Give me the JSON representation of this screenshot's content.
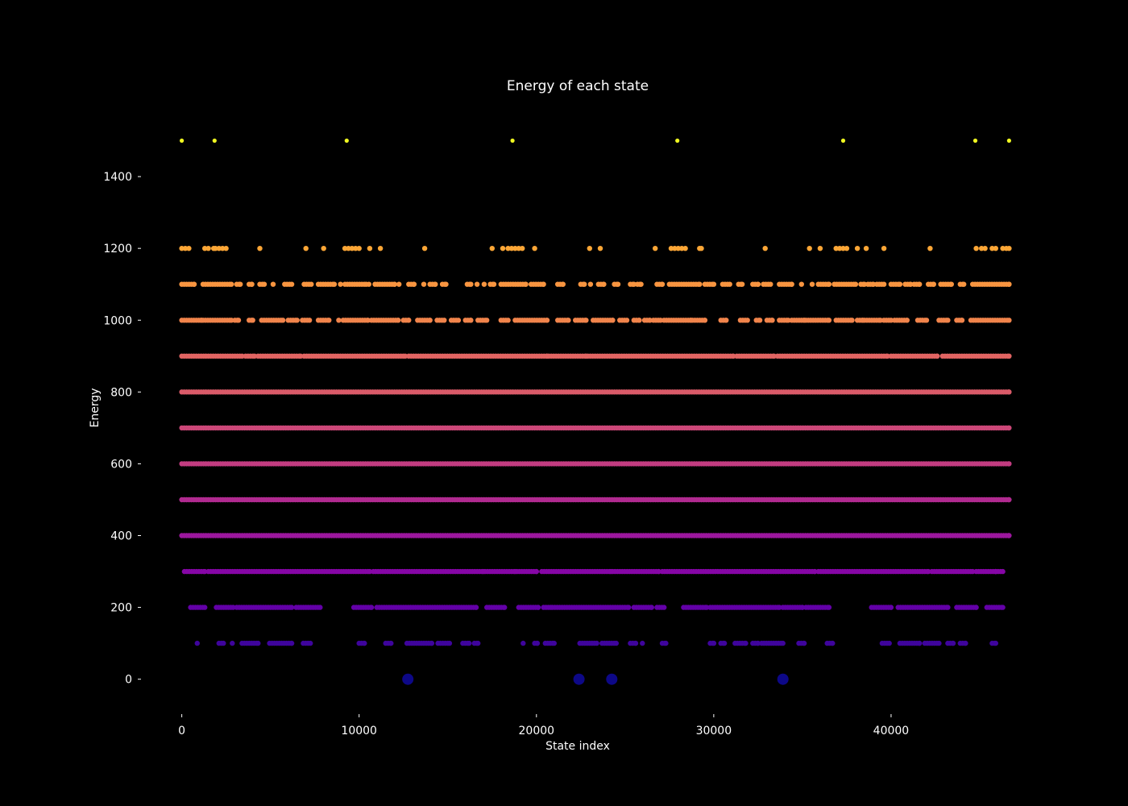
{
  "chart_data": {
    "type": "scatter",
    "title": "Energy of each state",
    "xlabel": "State index",
    "ylabel": "Energy",
    "xlim": [
      -2300,
      47000
    ],
    "ylim": [
      -95,
      1600
    ],
    "x_ticks": [
      0,
      10000,
      20000,
      30000,
      40000
    ],
    "x_tick_labels": [
      "0",
      "10000",
      "20000",
      "30000",
      "40000"
    ],
    "y_ticks": [
      0,
      200,
      400,
      600,
      800,
      1000,
      1200,
      1400
    ],
    "y_tick_labels": [
      "0",
      "200",
      "400",
      "600",
      "800",
      "1000",
      "1200",
      "1400"
    ],
    "total_states": 46656,
    "grid": false,
    "colormap": "plasma",
    "levels": [
      {
        "energy": 0,
        "color": "#0d0887",
        "marker": "large",
        "x": [
          12750,
          22400,
          24250,
          33900
        ]
      },
      {
        "energy": 100,
        "color": "#3e049c",
        "marker": "medium",
        "ranges": [
          [
            870,
            870
          ],
          [
            2100,
            2350
          ],
          [
            2800,
            2900
          ],
          [
            3400,
            4300
          ],
          [
            4950,
            6200
          ],
          [
            6850,
            7250
          ],
          [
            10000,
            10300
          ],
          [
            11500,
            11800
          ],
          [
            12700,
            14100
          ],
          [
            14450,
            15100
          ],
          [
            15850,
            16200
          ],
          [
            16500,
            16700
          ],
          [
            19200,
            19300
          ],
          [
            19900,
            20050
          ],
          [
            20500,
            21000
          ],
          [
            22450,
            23400
          ],
          [
            23700,
            24500
          ],
          [
            25300,
            25600
          ],
          [
            25950,
            26000
          ],
          [
            27100,
            27300
          ],
          [
            29800,
            30000
          ],
          [
            30400,
            30600
          ],
          [
            31200,
            31800
          ],
          [
            32200,
            32500
          ],
          [
            32700,
            33900
          ],
          [
            34800,
            35100
          ],
          [
            36400,
            36700
          ],
          [
            39500,
            39900
          ],
          [
            40500,
            41600
          ],
          [
            41900,
            42700
          ],
          [
            43200,
            43500
          ],
          [
            43900,
            44200
          ],
          [
            45700,
            45900
          ]
        ]
      },
      {
        "energy": 200,
        "color": "#6300a7",
        "marker": "medium",
        "ranges": [
          [
            500,
            1300
          ],
          [
            1950,
            2900
          ],
          [
            3100,
            6200
          ],
          [
            6450,
            7800
          ],
          [
            9700,
            10700
          ],
          [
            11000,
            16600
          ],
          [
            17200,
            18200
          ],
          [
            19000,
            20100
          ],
          [
            20400,
            20800
          ],
          [
            20900,
            25200
          ],
          [
            25500,
            26500
          ],
          [
            26800,
            27200
          ],
          [
            28300,
            29600
          ],
          [
            29800,
            33700
          ],
          [
            33900,
            35000
          ],
          [
            35200,
            36500
          ],
          [
            38900,
            40000
          ],
          [
            40400,
            43200
          ],
          [
            43700,
            44800
          ],
          [
            45400,
            46300
          ]
        ]
      },
      {
        "energy": 300,
        "color": "#8606a6",
        "marker": "medium",
        "ranges": [
          [
            150,
            1300
          ],
          [
            1500,
            10600
          ],
          [
            10800,
            17000
          ],
          [
            17100,
            18800
          ],
          [
            18900,
            20000
          ],
          [
            20300,
            24200
          ],
          [
            24300,
            26900
          ],
          [
            27100,
            35700
          ],
          [
            35900,
            42100
          ],
          [
            42300,
            44600
          ],
          [
            44800,
            45900
          ],
          [
            45900,
            46300
          ]
        ]
      },
      {
        "energy": 400,
        "color": "#9c179e",
        "marker": "medium",
        "ranges": [
          [
            0,
            46656
          ]
        ]
      },
      {
        "energy": 500,
        "color": "#b12a90",
        "marker": "medium",
        "ranges": [
          [
            0,
            46656
          ]
        ]
      },
      {
        "energy": 600,
        "color": "#c23c81",
        "marker": "medium",
        "ranges": [
          [
            0,
            46656
          ]
        ]
      },
      {
        "energy": 700,
        "color": "#cc4778",
        "marker": "medium",
        "ranges": [
          [
            0,
            46656
          ]
        ]
      },
      {
        "energy": 800,
        "color": "#da5b69",
        "marker": "medium",
        "ranges": [
          [
            0,
            46656
          ]
        ]
      },
      {
        "energy": 900,
        "color": "#e16462",
        "marker": "medium",
        "ranges": [
          [
            0,
            3400
          ],
          [
            3600,
            4100
          ],
          [
            4300,
            6700
          ],
          [
            6900,
            12600
          ],
          [
            12800,
            20600
          ],
          [
            20700,
            22800
          ],
          [
            22900,
            31100
          ],
          [
            31300,
            33400
          ],
          [
            33600,
            39800
          ],
          [
            40000,
            42600
          ],
          [
            42900,
            46656
          ]
        ]
      },
      {
        "energy": 1000,
        "color": "#f1844b",
        "marker": "medium",
        "ranges": [
          [
            0,
            1100
          ],
          [
            1200,
            2800
          ],
          [
            3000,
            3200
          ],
          [
            3800,
            4000
          ],
          [
            4500,
            5700
          ],
          [
            6000,
            6500
          ],
          [
            6800,
            7200
          ],
          [
            7700,
            8300
          ],
          [
            8800,
            8900
          ],
          [
            9100,
            10500
          ],
          [
            10700,
            12200
          ],
          [
            12500,
            12800
          ],
          [
            13300,
            14000
          ],
          [
            14400,
            14800
          ],
          [
            15200,
            15600
          ],
          [
            16000,
            16300
          ],
          [
            16700,
            17200
          ],
          [
            18000,
            18400
          ],
          [
            18800,
            20600
          ],
          [
            21200,
            21800
          ],
          [
            22200,
            22800
          ],
          [
            23200,
            24300
          ],
          [
            24700,
            25100
          ],
          [
            25500,
            25800
          ],
          [
            26100,
            26400
          ],
          [
            26600,
            27000
          ],
          [
            27200,
            28700
          ],
          [
            28800,
            29500
          ],
          [
            30400,
            30700
          ],
          [
            31500,
            31900
          ],
          [
            32400,
            32600
          ],
          [
            33000,
            33300
          ],
          [
            33700,
            34200
          ],
          [
            34400,
            35100
          ],
          [
            35200,
            36500
          ],
          [
            36900,
            37800
          ],
          [
            38100,
            38400
          ],
          [
            38500,
            39400
          ],
          [
            39600,
            40000
          ],
          [
            40200,
            40900
          ],
          [
            41500,
            42000
          ],
          [
            42700,
            43200
          ],
          [
            43700,
            44000
          ],
          [
            44500,
            46656
          ]
        ]
      },
      {
        "energy": 1100,
        "color": "#f89540",
        "marker": "medium",
        "ranges": [
          [
            0,
            700
          ],
          [
            1200,
            2800
          ],
          [
            3100,
            3300
          ],
          [
            3800,
            3950
          ],
          [
            4400,
            4650
          ],
          [
            5100,
            5200
          ],
          [
            5800,
            6200
          ],
          [
            6900,
            7300
          ],
          [
            7700,
            8600
          ],
          [
            8900,
            9000
          ],
          [
            9200,
            10400
          ],
          [
            10500,
            10600
          ],
          [
            10900,
            12000
          ],
          [
            12200,
            12300
          ],
          [
            12800,
            13100
          ],
          [
            13600,
            13700
          ],
          [
            14000,
            14300
          ],
          [
            14700,
            14900
          ],
          [
            16100,
            16300
          ],
          [
            16600,
            16700
          ],
          [
            17000,
            17100
          ],
          [
            17400,
            17600
          ],
          [
            18000,
            19400
          ],
          [
            19700,
            20400
          ],
          [
            21200,
            21500
          ],
          [
            22500,
            22700
          ],
          [
            23000,
            23100
          ],
          [
            23500,
            23800
          ],
          [
            24400,
            24600
          ],
          [
            25300,
            25500
          ],
          [
            25700,
            25900
          ],
          [
            26800,
            27100
          ],
          [
            27500,
            29200
          ],
          [
            29500,
            30000
          ],
          [
            30500,
            30900
          ],
          [
            31400,
            31600
          ],
          [
            32200,
            32500
          ],
          [
            32800,
            33200
          ],
          [
            33700,
            34400
          ],
          [
            34900,
            35000
          ],
          [
            35500,
            35600
          ],
          [
            35900,
            36500
          ],
          [
            36800,
            38000
          ],
          [
            38300,
            38500
          ],
          [
            38700,
            39000
          ],
          [
            39200,
            39600
          ],
          [
            40000,
            40500
          ],
          [
            40800,
            41100
          ],
          [
            41300,
            41600
          ],
          [
            42100,
            42400
          ],
          [
            42800,
            43400
          ],
          [
            43900,
            44100
          ],
          [
            44600,
            46656
          ]
        ]
      },
      {
        "energy": 1200,
        "color": "#fca636",
        "marker": "medium",
        "x": [
          0,
          200,
          400,
          1300,
          1500,
          1800,
          1900,
          2100,
          2300,
          2500,
          4400,
          7000,
          8000,
          9200,
          9400,
          9600,
          9800,
          10000,
          10600,
          11200,
          13700,
          17500,
          18100,
          18400,
          18600,
          18800,
          19000,
          19200,
          19900,
          23000,
          23600,
          26700,
          27600,
          27800,
          28000,
          28200,
          28400,
          29200,
          29300,
          32900,
          35400,
          36000,
          36900,
          37100,
          37300,
          37500,
          38100,
          38600,
          39600,
          42200,
          44800,
          45100,
          45300,
          45700,
          45900,
          46300,
          46500,
          46656
        ]
      },
      {
        "energy": 1500,
        "color": "#f0f921",
        "marker": "small",
        "x": [
          0,
          1850,
          9300,
          18650,
          27950,
          37300,
          44750,
          46656
        ]
      }
    ]
  }
}
